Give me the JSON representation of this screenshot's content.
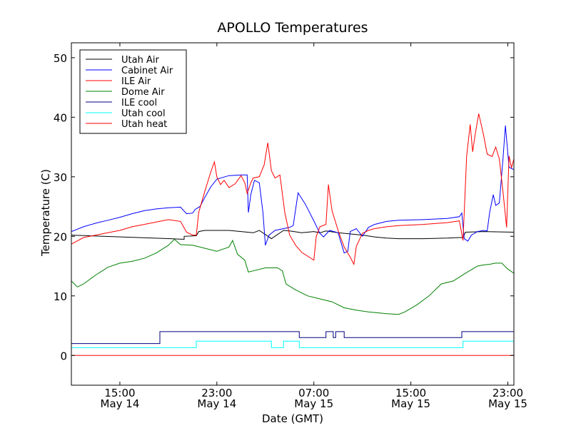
{
  "chart_data": {
    "type": "line",
    "title": "APOLLO Temperatures",
    "xlabel": "Date (GMT)",
    "ylabel": "Temperature (C)",
    "x_unit": "hours since May 14 00:00 GMT",
    "xlim": [
      11.0,
      47.5
    ],
    "ylim": [
      -5,
      52.5
    ],
    "yticks": [
      0,
      10,
      20,
      30,
      40,
      50
    ],
    "xticks": [
      {
        "x": 15,
        "time": "15:00",
        "date": "May 14"
      },
      {
        "x": 23,
        "time": "23:00",
        "date": "May 14"
      },
      {
        "x": 31,
        "time": "07:00",
        "date": "May 15"
      },
      {
        "x": 39,
        "time": "15:00",
        "date": "May 15"
      },
      {
        "x": 47,
        "time": "23:00",
        "date": "May 15"
      }
    ],
    "legend_position": "top-left",
    "series": [
      {
        "name": "Utah Air",
        "color": "#000000",
        "points": [
          [
            11.0,
            20.2
          ],
          [
            19.2,
            19.6
          ],
          [
            20.3,
            19.5
          ],
          [
            20.3,
            20.0
          ],
          [
            21.3,
            20.1
          ],
          [
            21.5,
            20.8
          ],
          [
            22,
            21.0
          ],
          [
            24,
            21.0
          ],
          [
            25,
            20.8
          ],
          [
            26,
            20.6
          ],
          [
            26.5,
            21.0
          ],
          [
            27,
            20.3
          ],
          [
            27.5,
            19.6
          ],
          [
            28.5,
            21.0
          ],
          [
            29,
            20.9
          ],
          [
            30,
            20.6
          ],
          [
            31,
            20.8
          ],
          [
            31.5,
            20.6
          ],
          [
            32,
            20.9
          ],
          [
            33,
            20.6
          ],
          [
            35,
            20.2
          ],
          [
            36,
            19.9
          ],
          [
            37,
            19.7
          ],
          [
            38,
            19.6
          ],
          [
            40,
            19.6
          ],
          [
            42,
            19.7
          ],
          [
            43,
            19.8
          ],
          [
            43.3,
            19.8
          ],
          [
            43.5,
            20.7
          ],
          [
            45,
            20.8
          ],
          [
            47.5,
            20.7
          ]
        ]
      },
      {
        "name": "Cabinet Air",
        "color": "#0000ff",
        "points": [
          [
            11.0,
            20.8
          ],
          [
            12,
            21.6
          ],
          [
            13,
            22.2
          ],
          [
            14,
            22.7
          ],
          [
            15,
            23.2
          ],
          [
            16,
            23.8
          ],
          [
            17,
            24.3
          ],
          [
            18,
            24.6
          ],
          [
            19,
            24.8
          ],
          [
            20,
            24.9
          ],
          [
            20.5,
            23.8
          ],
          [
            21,
            23.9
          ],
          [
            21.2,
            24.5
          ],
          [
            21.6,
            25.0
          ],
          [
            22,
            26.5
          ],
          [
            22.5,
            28.3
          ],
          [
            23,
            29.6
          ],
          [
            24,
            30.2
          ],
          [
            25,
            30.3
          ],
          [
            25.5,
            30.3
          ],
          [
            25.6,
            24.0
          ],
          [
            25.8,
            27.0
          ],
          [
            26.1,
            29.4
          ],
          [
            26.5,
            29.0
          ],
          [
            26.8,
            24.0
          ],
          [
            27.0,
            18.5
          ],
          [
            27.3,
            20.2
          ],
          [
            27.8,
            21.0
          ],
          [
            28.5,
            21.3
          ],
          [
            29.0,
            21.5
          ],
          [
            29.3,
            21.8
          ],
          [
            29.7,
            27.3
          ],
          [
            30.3,
            25.4
          ],
          [
            31.0,
            22.6
          ],
          [
            31.5,
            20.5
          ],
          [
            31.8,
            19.9
          ],
          [
            32.3,
            21.0
          ],
          [
            33.0,
            20.6
          ],
          [
            33.5,
            17.2
          ],
          [
            33.8,
            17.5
          ],
          [
            34.0,
            20.8
          ],
          [
            34.5,
            21.3
          ],
          [
            35.0,
            20.0
          ],
          [
            35.5,
            21.5
          ],
          [
            36,
            22.0
          ],
          [
            37,
            22.5
          ],
          [
            38,
            22.7
          ],
          [
            40,
            22.8
          ],
          [
            42,
            23.0
          ],
          [
            43,
            23.3
          ],
          [
            43.2,
            23.9
          ],
          [
            43.4,
            19.6
          ],
          [
            43.7,
            19.2
          ],
          [
            44.0,
            20.2
          ],
          [
            44.5,
            20.8
          ],
          [
            45.0,
            21.0
          ],
          [
            45.3,
            20.9
          ],
          [
            45.5,
            24.0
          ],
          [
            45.8,
            27.0
          ],
          [
            46.0,
            25.2
          ],
          [
            46.3,
            25.6
          ],
          [
            46.6,
            33.0
          ],
          [
            46.8,
            38.6
          ],
          [
            47.1,
            31.6
          ],
          [
            47.5,
            31.2
          ]
        ]
      },
      {
        "name": "ILE Air",
        "color": "#ff0000",
        "points": [
          [
            11.0,
            18.7
          ],
          [
            12,
            19.8
          ],
          [
            13,
            20.2
          ],
          [
            14,
            20.6
          ],
          [
            15,
            21.0
          ],
          [
            16,
            21.6
          ],
          [
            17,
            22.0
          ],
          [
            18,
            22.4
          ],
          [
            19,
            22.8
          ],
          [
            20,
            22.5
          ],
          [
            20.5,
            20.7
          ],
          [
            21.0,
            20.2
          ],
          [
            21.3,
            20.2
          ],
          [
            21.5,
            24.0
          ],
          [
            22,
            27.5
          ],
          [
            22.5,
            30.8
          ],
          [
            22.8,
            32.5
          ],
          [
            23,
            30.0
          ],
          [
            23.3,
            28.7
          ],
          [
            23.6,
            29.4
          ],
          [
            24,
            28.2
          ],
          [
            24.5,
            28.8
          ],
          [
            25,
            30.2
          ],
          [
            25.3,
            29.0
          ],
          [
            25.5,
            27.2
          ],
          [
            25.8,
            29.0
          ],
          [
            26,
            29.8
          ],
          [
            26.5,
            30.0
          ],
          [
            26.9,
            32.0
          ],
          [
            27.2,
            35.7
          ],
          [
            27.5,
            31.0
          ],
          [
            27.8,
            29.8
          ],
          [
            28.2,
            30.3
          ],
          [
            28.6,
            24.0
          ],
          [
            29.0,
            20.2
          ],
          [
            29.5,
            18.5
          ],
          [
            30,
            17.3
          ],
          [
            31.0,
            16.0
          ],
          [
            31.2,
            20.0
          ],
          [
            31.5,
            21.6
          ],
          [
            32.0,
            22.0
          ],
          [
            32.2,
            28.7
          ],
          [
            32.5,
            24.3
          ],
          [
            33.0,
            21.0
          ],
          [
            33.5,
            18.2
          ],
          [
            34.0,
            16.5
          ],
          [
            34.3,
            15.3
          ],
          [
            34.5,
            18.3
          ],
          [
            35.0,
            20.5
          ],
          [
            35.5,
            21.0
          ],
          [
            36,
            21.3
          ],
          [
            37,
            21.6
          ],
          [
            38,
            21.8
          ],
          [
            40,
            22.0
          ],
          [
            42,
            22.3
          ],
          [
            43,
            22.6
          ],
          [
            43.3,
            19.3
          ],
          [
            43.6,
            33.5
          ],
          [
            43.9,
            38.8
          ],
          [
            44.1,
            34.2
          ],
          [
            44.3,
            37.0
          ],
          [
            44.6,
            40.6
          ],
          [
            45,
            37.0
          ],
          [
            45.3,
            33.8
          ],
          [
            45.7,
            33.4
          ],
          [
            46,
            35.0
          ],
          [
            46.3,
            33.0
          ],
          [
            46.6,
            27.5
          ],
          [
            46.9,
            21.5
          ],
          [
            47.1,
            33.5
          ],
          [
            47.3,
            31.5
          ],
          [
            47.5,
            33.0
          ]
        ]
      },
      {
        "name": "Dome Air",
        "color": "#008000",
        "points": [
          [
            11.0,
            12.5
          ],
          [
            11.5,
            11.5
          ],
          [
            12,
            12.0
          ],
          [
            13,
            13.5
          ],
          [
            14,
            14.8
          ],
          [
            15,
            15.5
          ],
          [
            16,
            15.8
          ],
          [
            17,
            16.3
          ],
          [
            18,
            17.2
          ],
          [
            19,
            18.5
          ],
          [
            19.5,
            19.5
          ],
          [
            20,
            18.6
          ],
          [
            21,
            18.5
          ],
          [
            22,
            18.0
          ],
          [
            23,
            17.5
          ],
          [
            24,
            18.2
          ],
          [
            24.3,
            19.3
          ],
          [
            24.7,
            17.0
          ],
          [
            25.3,
            16.0
          ],
          [
            25.6,
            14.0
          ],
          [
            26,
            14.2
          ],
          [
            27,
            14.7
          ],
          [
            28,
            14.7
          ],
          [
            28.4,
            14.2
          ],
          [
            28.7,
            12.0
          ],
          [
            29.5,
            11.0
          ],
          [
            30.5,
            10.0
          ],
          [
            31.5,
            9.5
          ],
          [
            32.5,
            9.0
          ],
          [
            33.5,
            8.0
          ],
          [
            34.5,
            7.6
          ],
          [
            35.5,
            7.3
          ],
          [
            37,
            7.0
          ],
          [
            38,
            6.9
          ],
          [
            38.5,
            7.3
          ],
          [
            39.5,
            8.5
          ],
          [
            40.5,
            10.0
          ],
          [
            41.5,
            12.0
          ],
          [
            42.5,
            12.5
          ],
          [
            43.5,
            13.8
          ],
          [
            44.5,
            15.0
          ],
          [
            45,
            15.2
          ],
          [
            45.5,
            15.3
          ],
          [
            46,
            15.5
          ],
          [
            46.5,
            15.5
          ],
          [
            47,
            14.5
          ],
          [
            47.5,
            13.8
          ]
        ]
      },
      {
        "name": "ILE cool",
        "color": "#000080",
        "points": [
          [
            11.0,
            2.0
          ],
          [
            18.3,
            2.0
          ],
          [
            18.3,
            4.0
          ],
          [
            29.8,
            4.0
          ],
          [
            29.8,
            3.0
          ],
          [
            32.0,
            3.0
          ],
          [
            32.0,
            4.0
          ],
          [
            32.6,
            4.0
          ],
          [
            32.6,
            3.0
          ],
          [
            32.8,
            3.0
          ],
          [
            32.8,
            4.0
          ],
          [
            33.5,
            4.0
          ],
          [
            33.5,
            3.0
          ],
          [
            43.2,
            3.0
          ],
          [
            43.2,
            4.0
          ],
          [
            47.5,
            4.0
          ]
        ]
      },
      {
        "name": "Utah cool",
        "color": "#00ffff",
        "points": [
          [
            11.0,
            1.3
          ],
          [
            21.3,
            1.3
          ],
          [
            21.3,
            2.4
          ],
          [
            27.5,
            2.4
          ],
          [
            27.5,
            1.3
          ],
          [
            28.5,
            1.3
          ],
          [
            28.5,
            2.4
          ],
          [
            29.8,
            2.4
          ],
          [
            29.8,
            1.3
          ],
          [
            43.3,
            1.3
          ],
          [
            43.3,
            2.4
          ],
          [
            47.5,
            2.4
          ]
        ]
      },
      {
        "name": "Utah heat",
        "color": "#ff0000",
        "points": [
          [
            11.0,
            0
          ],
          [
            47.5,
            0
          ]
        ]
      }
    ]
  }
}
